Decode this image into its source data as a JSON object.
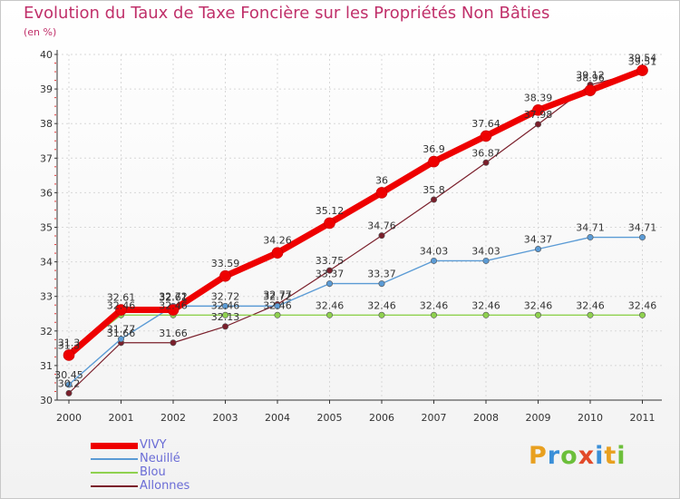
{
  "title": "Evolution du Taux de Taxe Foncière sur les Propriétés Non Bâties",
  "unit": "(en %)",
  "logo": {
    "letters": [
      "P",
      "r",
      "o",
      "x",
      "i",
      "t",
      "i"
    ],
    "colors": [
      "#e8a020",
      "#3a8fd8",
      "#6cbf3a",
      "#e24a2a",
      "#3a8fd8",
      "#e8a020",
      "#6cbf3a"
    ]
  },
  "chart_data": {
    "type": "line",
    "x": [
      "2000",
      "2001",
      "2002",
      "2003",
      "2004",
      "2005",
      "2006",
      "2007",
      "2008",
      "2009",
      "2010",
      "2011"
    ],
    "ylim": [
      30,
      40
    ],
    "yticks": [
      "30",
      "31",
      "32",
      "33",
      "34",
      "35",
      "36",
      "37",
      "38",
      "39",
      "40"
    ],
    "series": [
      {
        "name": "VIVY",
        "color": "#ee0000",
        "values": [
          31.3,
          32.61,
          32.61,
          33.59,
          34.26,
          35.12,
          36,
          36.9,
          37.64,
          38.39,
          38.96,
          39.54
        ],
        "labels": [
          "31.3",
          "32.61",
          "32.61",
          "33.59",
          "34.26",
          "35.12",
          "36",
          "36.9",
          "37.64",
          "38.39",
          "38.96",
          "39.54"
        ]
      },
      {
        "name": "Neuillé",
        "color": "#5b9bd5",
        "values": [
          30.45,
          31.77,
          32.72,
          32.72,
          32.72,
          33.37,
          33.37,
          34.03,
          34.03,
          34.37,
          34.71,
          34.71
        ],
        "labels": [
          "30.45",
          "31.77",
          "32.72",
          "32.72",
          "32.72",
          "33.37",
          "33.37",
          "34.03",
          "34.03",
          "34.37",
          "34.71",
          "34.71"
        ]
      },
      {
        "name": "Blou",
        "color": "#8fd14f",
        "values": [
          31.3,
          32.46,
          32.46,
          32.46,
          32.46,
          32.46,
          32.46,
          32.46,
          32.46,
          32.46,
          32.46,
          32.46
        ],
        "labels": [
          "31.3",
          "32.46",
          "32.46",
          "32.46",
          "32.46",
          "32.46",
          "32.46",
          "32.46",
          "32.46",
          "32.46",
          "32.46",
          "32.46"
        ]
      },
      {
        "name": "Allonnes",
        "color": "#7a1f2b",
        "values": [
          30.2,
          31.66,
          31.66,
          32.13,
          32.77,
          33.75,
          34.76,
          35.8,
          36.87,
          37.98,
          39.12,
          39.51
        ],
        "labels": [
          "30.2",
          "31.66",
          "31.66",
          "32.13",
          "32.77",
          "33.75",
          "34.76",
          "35.8",
          "36.87",
          "37.98",
          "39.12",
          "39.51"
        ]
      }
    ]
  }
}
